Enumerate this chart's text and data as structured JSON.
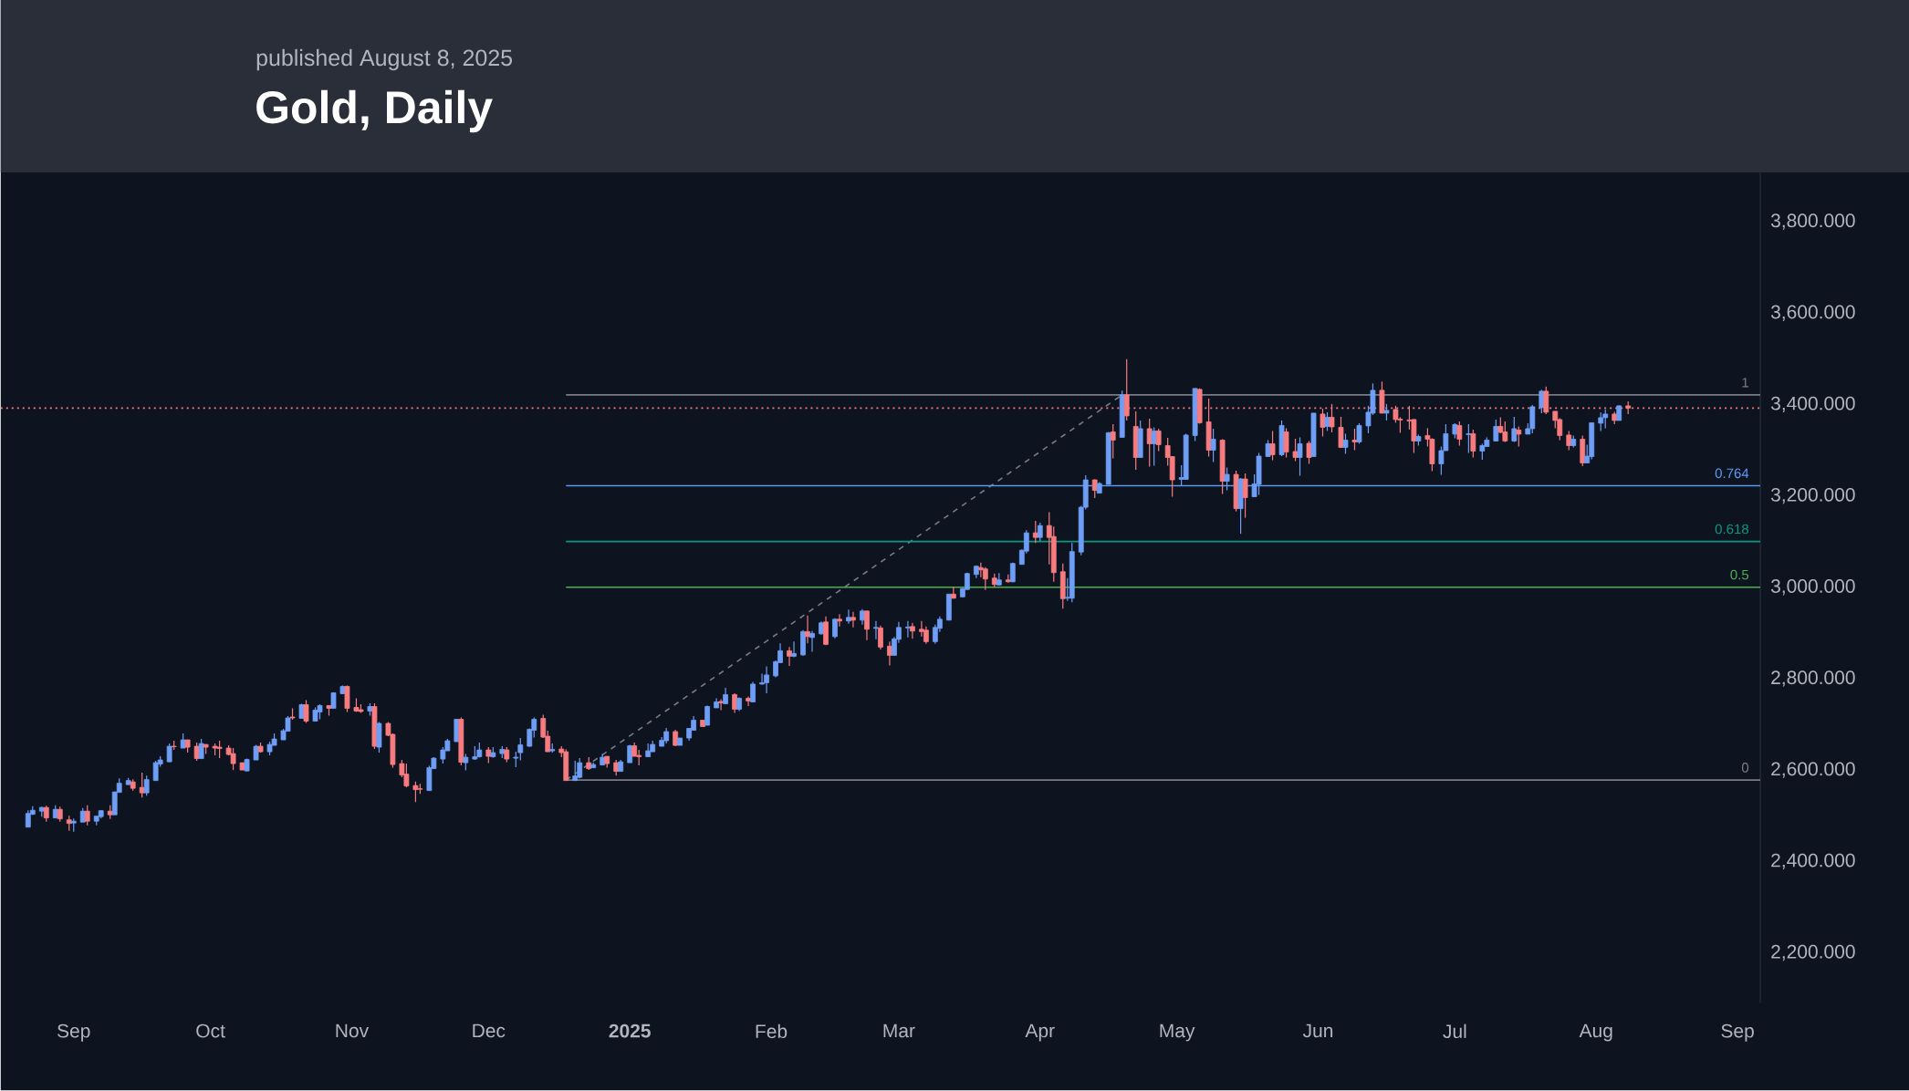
{
  "chart_data": {
    "type": "candlestick",
    "title": "Gold, Daily",
    "subtitle": "published August 8, 2025",
    "x": [
      "2024-08-22",
      "2024-08-23",
      "2024-08-25",
      "2024-08-26",
      "2024-08-28",
      "2024-08-29",
      "2024-08-31",
      "2024-09-01",
      "2024-09-03",
      "2024-09-04",
      "2024-09-06",
      "2024-09-07",
      "2024-09-09",
      "2024-09-10",
      "2024-09-11",
      "2024-09-13",
      "2024-09-14",
      "2024-09-16",
      "2024-09-17",
      "2024-09-19",
      "2024-09-20",
      "2024-09-22",
      "2024-09-23",
      "2024-09-25",
      "2024-09-26",
      "2024-09-28",
      "2024-09-29",
      "2024-09-30",
      "2024-10-02",
      "2024-10-03",
      "2024-10-05",
      "2024-10-06",
      "2024-10-08",
      "2024-10-09",
      "2024-10-11",
      "2024-10-12",
      "2024-10-14",
      "2024-10-15",
      "2024-10-17",
      "2024-10-18",
      "2024-10-19",
      "2024-10-21",
      "2024-10-22",
      "2024-10-24",
      "2024-10-25",
      "2024-10-27",
      "2024-10-28",
      "2024-10-30",
      "2024-10-31",
      "2024-11-02",
      "2024-11-03",
      "2024-11-05",
      "2024-11-06",
      "2024-11-07",
      "2024-11-09",
      "2024-11-10",
      "2024-11-12",
      "2024-11-13",
      "2024-11-15",
      "2024-11-16",
      "2024-11-18",
      "2024-11-19",
      "2024-11-21",
      "2024-11-22",
      "2024-11-24",
      "2024-11-25",
      "2024-11-26",
      "2024-11-28",
      "2024-11-29",
      "2024-12-01",
      "2024-12-02",
      "2024-12-04",
      "2024-12-05",
      "2024-12-07",
      "2024-12-08",
      "2024-12-10",
      "2024-12-11",
      "2024-12-13",
      "2024-12-14",
      "2024-12-15",
      "2024-12-17",
      "2024-12-18",
      "2024-12-20",
      "2024-12-21",
      "2024-12-23",
      "2024-12-24",
      "2024-12-26",
      "2024-12-27",
      "2024-12-29",
      "2024-12-30",
      "2025-01-01",
      "2025-01-02",
      "2025-01-03",
      "2025-01-05",
      "2025-01-06",
      "2025-01-08",
      "2025-01-09",
      "2025-01-11",
      "2025-01-12",
      "2025-01-14",
      "2025-01-15",
      "2025-01-17",
      "2025-01-18",
      "2025-01-20",
      "2025-01-21",
      "2025-01-22",
      "2025-01-24",
      "2025-01-25",
      "2025-01-27",
      "2025-01-28",
      "2025-01-30",
      "2025-01-31",
      "2025-02-02",
      "2025-02-03",
      "2025-02-05",
      "2025-02-06",
      "2025-02-08",
      "2025-02-09",
      "2025-02-10",
      "2025-02-12",
      "2025-02-13",
      "2025-02-15",
      "2025-02-16",
      "2025-02-18",
      "2025-02-19",
      "2025-02-21",
      "2025-02-22",
      "2025-02-24",
      "2025-02-25",
      "2025-02-27",
      "2025-02-28",
      "2025-03-01",
      "2025-03-03",
      "2025-03-04",
      "2025-03-06",
      "2025-03-07",
      "2025-03-09",
      "2025-03-10",
      "2025-03-12",
      "2025-03-13",
      "2025-03-15",
      "2025-03-16",
      "2025-03-18",
      "2025-03-19",
      "2025-03-20",
      "2025-03-22",
      "2025-03-23",
      "2025-03-25",
      "2025-03-26",
      "2025-03-28",
      "2025-03-29",
      "2025-03-31",
      "2025-04-01",
      "2025-04-03",
      "2025-04-04",
      "2025-04-06",
      "2025-04-07",
      "2025-04-08",
      "2025-04-10",
      "2025-04-11",
      "2025-04-13",
      "2025-04-14",
      "2025-04-16",
      "2025-04-17",
      "2025-04-19",
      "2025-04-20",
      "2025-04-22",
      "2025-04-23",
      "2025-04-25",
      "2025-04-26",
      "2025-04-27",
      "2025-04-29",
      "2025-04-30",
      "2025-05-02",
      "2025-05-03",
      "2025-05-05",
      "2025-05-06",
      "2025-05-08",
      "2025-05-09",
      "2025-05-11",
      "2025-05-12",
      "2025-05-14",
      "2025-05-15",
      "2025-05-16",
      "2025-05-18",
      "2025-05-19",
      "2025-05-21",
      "2025-05-22",
      "2025-05-24",
      "2025-05-25",
      "2025-05-27",
      "2025-05-28",
      "2025-05-30",
      "2025-05-31",
      "2025-06-02",
      "2025-06-03",
      "2025-06-04",
      "2025-06-06",
      "2025-06-07",
      "2025-06-09",
      "2025-06-10",
      "2025-06-12",
      "2025-06-13",
      "2025-06-15",
      "2025-06-16",
      "2025-06-18",
      "2025-06-19",
      "2025-06-21",
      "2025-06-22",
      "2025-06-23",
      "2025-06-25",
      "2025-06-26",
      "2025-06-28",
      "2025-06-29",
      "2025-07-01",
      "2025-07-02",
      "2025-07-04",
      "2025-07-05",
      "2025-07-07",
      "2025-07-08",
      "2025-07-10",
      "2025-07-11",
      "2025-07-12",
      "2025-07-14",
      "2025-07-15",
      "2025-07-17",
      "2025-07-18",
      "2025-07-20",
      "2025-07-21",
      "2025-07-23",
      "2025-07-24",
      "2025-07-26",
      "2025-07-27",
      "2025-07-29",
      "2025-07-30",
      "2025-07-31",
      "2025-08-02",
      "2025-08-03",
      "2025-08-05",
      "2025-08-06",
      "2025-08-08"
    ],
    "ohlc": [
      [
        2475,
        2512,
        2475,
        2505
      ],
      [
        2503,
        2521,
        2502,
        2512
      ],
      [
        2510,
        2520,
        2498,
        2518
      ],
      [
        2518,
        2522,
        2487,
        2495
      ],
      [
        2495,
        2523,
        2495,
        2514
      ],
      [
        2514,
        2520,
        2487,
        2493
      ],
      [
        2491,
        2500,
        2467,
        2483
      ],
      [
        2484,
        2494,
        2465,
        2488
      ],
      [
        2486,
        2517,
        2486,
        2510
      ],
      [
        2510,
        2523,
        2479,
        2488
      ],
      [
        2488,
        2499,
        2479,
        2499
      ],
      [
        2498,
        2512,
        2494,
        2511
      ],
      [
        2510,
        2523,
        2493,
        2502
      ],
      [
        2502,
        2553,
        2502,
        2552
      ],
      [
        2551,
        2582,
        2551,
        2571
      ],
      [
        2568,
        2583,
        2568,
        2577
      ],
      [
        2574,
        2580,
        2555,
        2560
      ],
      [
        2562,
        2594,
        2540,
        2550
      ],
      [
        2550,
        2588,
        2544,
        2579
      ],
      [
        2577,
        2620,
        2577,
        2616
      ],
      [
        2613,
        2630,
        2607,
        2622
      ],
      [
        2618,
        2658,
        2617,
        2652
      ],
      [
        2652,
        2664,
        2644,
        2651
      ],
      [
        2648,
        2680,
        2648,
        2666
      ],
      [
        2666,
        2666,
        2638,
        2650
      ],
      [
        2652,
        2660,
        2620,
        2625
      ],
      [
        2625,
        2668,
        2625,
        2658
      ],
      [
        2656,
        2656,
        2635,
        2650
      ],
      [
        2652,
        2658,
        2632,
        2648
      ],
      [
        2650,
        2664,
        2626,
        2647
      ],
      [
        2648,
        2654,
        2632,
        2634
      ],
      [
        2636,
        2648,
        2600,
        2614
      ],
      [
        2616,
        2616,
        2600,
        2600
      ],
      [
        2598,
        2625,
        2597,
        2623
      ],
      [
        2622,
        2655,
        2622,
        2652
      ],
      [
        2652,
        2660,
        2638,
        2640
      ],
      [
        2640,
        2662,
        2632,
        2656
      ],
      [
        2654,
        2680,
        2654,
        2668
      ],
      [
        2666,
        2690,
        2666,
        2686
      ],
      [
        2685,
        2718,
        2685,
        2714
      ],
      [
        2716,
        2735,
        2710,
        2714
      ],
      [
        2713,
        2745,
        2713,
        2743
      ],
      [
        2743,
        2753,
        2703,
        2707
      ],
      [
        2707,
        2737,
        2707,
        2731
      ],
      [
        2727,
        2744,
        2711,
        2741
      ],
      [
        2741,
        2741,
        2719,
        2735
      ],
      [
        2735,
        2770,
        2735,
        2769
      ],
      [
        2767,
        2785,
        2766,
        2783
      ],
      [
        2783,
        2785,
        2727,
        2735
      ],
      [
        2737,
        2757,
        2727,
        2729
      ],
      [
        2732,
        2744,
        2725,
        2728
      ],
      [
        2729,
        2746,
        2719,
        2739
      ],
      [
        2739,
        2746,
        2646,
        2652
      ],
      [
        2650,
        2705,
        2638,
        2702
      ],
      [
        2702,
        2705,
        2674,
        2676
      ],
      [
        2678,
        2680,
        2605,
        2612
      ],
      [
        2614,
        2622,
        2584,
        2589
      ],
      [
        2591,
        2614,
        2562,
        2565
      ],
      [
        2566,
        2575,
        2530,
        2557
      ],
      [
        2559,
        2570,
        2548,
        2558
      ],
      [
        2555,
        2609,
        2555,
        2605
      ],
      [
        2603,
        2628,
        2603,
        2626
      ],
      [
        2624,
        2650,
        2614,
        2644
      ],
      [
        2642,
        2668,
        2642,
        2664
      ],
      [
        2662,
        2712,
        2662,
        2711
      ],
      [
        2711,
        2715,
        2610,
        2617
      ],
      [
        2616,
        2635,
        2599,
        2628
      ],
      [
        2624,
        2652,
        2622,
        2629
      ],
      [
        2629,
        2660,
        2627,
        2644
      ],
      [
        2644,
        2650,
        2615,
        2630
      ],
      [
        2629,
        2650,
        2627,
        2638
      ],
      [
        2636,
        2652,
        2626,
        2645
      ],
      [
        2644,
        2650,
        2617,
        2624
      ],
      [
        2626,
        2640,
        2606,
        2628
      ],
      [
        2638,
        2670,
        2621,
        2655
      ],
      [
        2652,
        2691,
        2651,
        2689
      ],
      [
        2687,
        2715,
        2671,
        2711
      ],
      [
        2713,
        2721,
        2670,
        2672
      ],
      [
        2674,
        2686,
        2640,
        2640
      ],
      [
        2642,
        2658,
        2638,
        2645
      ],
      [
        2646,
        2652,
        2628,
        2638
      ],
      [
        2640,
        2645,
        2577,
        2577
      ],
      [
        2577,
        2620,
        2577,
        2587
      ],
      [
        2584,
        2626,
        2582,
        2616
      ],
      [
        2616,
        2628,
        2600,
        2603
      ],
      [
        2605,
        2616,
        2604,
        2612
      ],
      [
        2611,
        2635,
        2610,
        2628
      ],
      [
        2630,
        2630,
        2605,
        2614
      ],
      [
        2616,
        2622,
        2588,
        2597
      ],
      [
        2597,
        2622,
        2597,
        2618
      ],
      [
        2616,
        2655,
        2616,
        2653
      ],
      [
        2653,
        2660,
        2630,
        2630
      ],
      [
        2632,
        2644,
        2610,
        2629
      ],
      [
        2629,
        2658,
        2629,
        2642
      ],
      [
        2640,
        2664,
        2640,
        2656
      ],
      [
        2652,
        2672,
        2652,
        2665
      ],
      [
        2664,
        2692,
        2658,
        2684
      ],
      [
        2684,
        2688,
        2652,
        2654
      ],
      [
        2654,
        2670,
        2654,
        2670
      ],
      [
        2670,
        2691,
        2664,
        2691
      ],
      [
        2687,
        2718,
        2687,
        2709
      ],
      [
        2709,
        2709,
        2695,
        2695
      ],
      [
        2698,
        2741,
        2698,
        2739
      ],
      [
        2736,
        2757,
        2736,
        2749
      ],
      [
        2750,
        2755,
        2731,
        2747
      ],
      [
        2745,
        2780,
        2745,
        2765
      ],
      [
        2765,
        2768,
        2725,
        2733
      ],
      [
        2733,
        2759,
        2729,
        2757
      ],
      [
        2757,
        2761,
        2740,
        2751
      ],
      [
        2749,
        2793,
        2749,
        2788
      ],
      [
        2788,
        2811,
        2787,
        2791
      ],
      [
        2791,
        2827,
        2768,
        2808
      ],
      [
        2806,
        2840,
        2803,
        2837
      ],
      [
        2835,
        2877,
        2835,
        2861
      ],
      [
        2861,
        2869,
        2828,
        2849
      ],
      [
        2849,
        2881,
        2847,
        2855
      ],
      [
        2852,
        2906,
        2850,
        2903
      ],
      [
        2903,
        2938,
        2877,
        2892
      ],
      [
        2890,
        2904,
        2859,
        2899
      ],
      [
        2898,
        2925,
        2896,
        2922
      ],
      [
        2924,
        2936,
        2873,
        2875
      ],
      [
        2892,
        2932,
        2888,
        2930
      ],
      [
        2930,
        2941,
        2914,
        2926
      ],
      [
        2926,
        2951,
        2920,
        2934
      ],
      [
        2934,
        2946,
        2912,
        2928
      ],
      [
        2928,
        2952,
        2918,
        2948
      ],
      [
        2948,
        2948,
        2884,
        2908
      ],
      [
        2910,
        2926,
        2886,
        2912
      ],
      [
        2911,
        2916,
        2864,
        2869
      ],
      [
        2871,
        2881,
        2829,
        2851
      ],
      [
        2851,
        2891,
        2851,
        2887
      ],
      [
        2886,
        2924,
        2878,
        2912
      ],
      [
        2911,
        2926,
        2890,
        2913
      ],
      [
        2914,
        2922,
        2887,
        2904
      ],
      [
        2908,
        2926,
        2892,
        2903
      ],
      [
        2906,
        2914,
        2876,
        2881
      ],
      [
        2881,
        2918,
        2876,
        2912
      ],
      [
        2910,
        2936,
        2902,
        2930
      ],
      [
        2928,
        2985,
        2928,
        2985
      ],
      [
        2985,
        3001,
        2975,
        2976
      ],
      [
        2979,
        2999,
        2978,
        2997
      ],
      [
        2995,
        3032,
        2995,
        3030
      ],
      [
        3028,
        3048,
        3020,
        3046
      ],
      [
        3043,
        3054,
        3022,
        3038
      ],
      [
        3040,
        3044,
        2994,
        3018
      ],
      [
        3020,
        3030,
        3000,
        3006
      ],
      [
        3005,
        3031,
        3004,
        3016
      ],
      [
        3016,
        3028,
        3010,
        3012
      ],
      [
        3012,
        3054,
        3011,
        3052
      ],
      [
        3050,
        3083,
        3050,
        3081
      ],
      [
        3079,
        3125,
        3074,
        3119
      ],
      [
        3119,
        3145,
        3097,
        3109
      ],
      [
        3109,
        3141,
        3101,
        3135
      ],
      [
        3135,
        3164,
        3050,
        3109
      ],
      [
        3111,
        3133,
        3012,
        3032
      ],
      [
        3034,
        3052,
        2953,
        2975
      ],
      [
        2976,
        3020,
        2970,
        2978
      ],
      [
        2976,
        3097,
        2967,
        3078
      ],
      [
        3077,
        3178,
        3070,
        3175
      ],
      [
        3175,
        3245,
        3170,
        3235
      ],
      [
        3235,
        3236,
        3195,
        3212
      ],
      [
        3206,
        3230,
        3205,
        3227
      ],
      [
        3225,
        3340,
        3225,
        3338
      ],
      [
        3340,
        3357,
        3282,
        3322
      ],
      [
        3328,
        3430,
        3328,
        3421
      ],
      [
        3421,
        3499,
        3365,
        3375
      ],
      [
        3352,
        3385,
        3257,
        3284
      ],
      [
        3284,
        3365,
        3284,
        3347
      ],
      [
        3347,
        3369,
        3264,
        3314
      ],
      [
        3314,
        3350,
        3266,
        3342
      ],
      [
        3342,
        3347,
        3298,
        3312
      ],
      [
        3310,
        3327,
        3266,
        3284
      ],
      [
        3286,
        3287,
        3198,
        3235
      ],
      [
        3236,
        3267,
        3222,
        3240
      ],
      [
        3236,
        3336,
        3236,
        3333
      ],
      [
        3332,
        3435,
        3320,
        3435
      ],
      [
        3433,
        3435,
        3358,
        3360
      ],
      [
        3362,
        3413,
        3286,
        3300
      ],
      [
        3300,
        3347,
        3274,
        3324
      ],
      [
        3322,
        3324,
        3204,
        3232
      ],
      [
        3232,
        3262,
        3212,
        3247
      ],
      [
        3247,
        3255,
        3166,
        3172
      ],
      [
        3172,
        3239,
        3117,
        3237
      ],
      [
        3237,
        3249,
        3152,
        3196
      ],
      [
        3198,
        3247,
        3198,
        3226
      ],
      [
        3225,
        3294,
        3202,
        3287
      ],
      [
        3286,
        3322,
        3286,
        3314
      ],
      [
        3314,
        3342,
        3278,
        3290
      ],
      [
        3290,
        3365,
        3287,
        3354
      ],
      [
        3340,
        3348,
        3284,
        3296
      ],
      [
        3297,
        3325,
        3276,
        3284
      ],
      [
        3284,
        3328,
        3244,
        3314
      ],
      [
        3315,
        3320,
        3270,
        3284
      ],
      [
        3286,
        3381,
        3286,
        3381
      ],
      [
        3379,
        3391,
        3330,
        3350
      ],
      [
        3352,
        3383,
        3342,
        3372
      ],
      [
        3372,
        3401,
        3339,
        3351
      ],
      [
        3350,
        3373,
        3305,
        3306
      ],
      [
        3306,
        3336,
        3292,
        3322
      ],
      [
        3322,
        3347,
        3300,
        3318
      ],
      [
        3318,
        3359,
        3314,
        3354
      ],
      [
        3353,
        3397,
        3337,
        3383
      ],
      [
        3381,
        3446,
        3377,
        3431
      ],
      [
        3431,
        3450,
        3381,
        3381
      ],
      [
        3381,
        3401,
        3365,
        3387
      ],
      [
        3389,
        3397,
        3360,
        3367
      ],
      [
        3368,
        3372,
        3338,
        3366
      ],
      [
        3366,
        3397,
        3345,
        3364
      ],
      [
        3367,
        3368,
        3294,
        3320
      ],
      [
        3320,
        3334,
        3310,
        3330
      ],
      [
        3332,
        3348,
        3308,
        3324
      ],
      [
        3324,
        3326,
        3254,
        3270
      ],
      [
        3270,
        3308,
        3246,
        3299
      ],
      [
        3299,
        3357,
        3299,
        3336
      ],
      [
        3335,
        3359,
        3326,
        3356
      ],
      [
        3354,
        3363,
        3310,
        3324
      ],
      [
        3334,
        3357,
        3294,
        3336
      ],
      [
        3336,
        3345,
        3284,
        3298
      ],
      [
        3298,
        3314,
        3279,
        3310
      ],
      [
        3308,
        3328,
        3308,
        3322
      ],
      [
        3320,
        3367,
        3320,
        3352
      ],
      [
        3352,
        3372,
        3337,
        3339
      ],
      [
        3340,
        3363,
        3318,
        3320
      ],
      [
        3320,
        3373,
        3318,
        3347
      ],
      [
        3344,
        3352,
        3308,
        3335
      ],
      [
        3335,
        3359,
        3335,
        3347
      ],
      [
        3347,
        3399,
        3337,
        3395
      ],
      [
        3393,
        3432,
        3381,
        3429
      ],
      [
        3429,
        3439,
        3379,
        3383
      ],
      [
        3385,
        3385,
        3348,
        3365
      ],
      [
        3367,
        3370,
        3322,
        3332
      ],
      [
        3333,
        3342,
        3300,
        3310
      ],
      [
        3310,
        3332,
        3306,
        3324
      ],
      [
        3324,
        3332,
        3265,
        3272
      ],
      [
        3272,
        3312,
        3272,
        3287
      ],
      [
        3286,
        3360,
        3280,
        3360
      ],
      [
        3359,
        3383,
        3342,
        3371
      ],
      [
        3371,
        3389,
        3348,
        3379
      ],
      [
        3379,
        3384,
        3357,
        3365
      ],
      [
        3365,
        3398,
        3365,
        3397
      ],
      [
        3397,
        3407,
        3379,
        3392
      ]
    ],
    "series": [
      {
        "type": "line",
        "x": [
          "2024-12-18",
          "2025-04-19"
        ],
        "values": [
          2578,
          3421
        ],
        "color": "#787b86",
        "line_style": "dashed"
      },
      {
        "type": "line",
        "name": "1",
        "x": [
          "2024-12-18",
          "2025-09-06"
        ],
        "values": [
          3421,
          3421
        ],
        "color": "#787b86"
      },
      {
        "type": "line",
        "name": "0.764",
        "x": [
          "2024-12-18",
          "2025-09-06"
        ],
        "values": [
          3222,
          3222
        ],
        "color": "#5b9cf6"
      },
      {
        "type": "line",
        "name": "0.618",
        "x": [
          "2024-12-18",
          "2025-09-06"
        ],
        "values": [
          3100,
          3100
        ],
        "color": "#089981"
      },
      {
        "type": "line",
        "name": "0.5",
        "x": [
          "2024-12-18",
          "2025-09-06"
        ],
        "values": [
          3000,
          3000
        ],
        "color": "#4caf50"
      },
      {
        "type": "line",
        "name": "0",
        "x": [
          "2024-12-18",
          "2025-09-06"
        ],
        "values": [
          2578,
          2578
        ],
        "color": "#787b86"
      }
    ],
    "ref_lines": [
      {
        "axis": "y",
        "value": 3392,
        "color": "#f77c80",
        "line_style": "dotted"
      }
    ],
    "xlim": [
      "2024-08-16",
      "2025-09-06"
    ],
    "ylim": [
      2090,
      3908
    ],
    "xticks": [
      {
        "value": "2024-09-01",
        "label": "Sep"
      },
      {
        "value": "2024-10-01",
        "label": "Oct"
      },
      {
        "value": "2024-11-01",
        "label": "Nov"
      },
      {
        "value": "2024-12-01",
        "label": "Dec"
      },
      {
        "value": "2025-01-01",
        "label": "**2025**"
      },
      {
        "value": "2025-02-01",
        "label": "Feb"
      },
      {
        "value": "2025-03-01",
        "label": "Mar"
      },
      {
        "value": "2025-04-01",
        "label": "Apr"
      },
      {
        "value": "2025-05-01",
        "label": "May"
      },
      {
        "value": "2025-06-01",
        "label": "Jun"
      },
      {
        "value": "2025-07-01",
        "label": "Jul"
      },
      {
        "value": "2025-08-01",
        "label": "Aug"
      },
      {
        "value": "2025-09-01",
        "label": "Sep"
      }
    ],
    "yticks": [
      {
        "value": 2200,
        "label": "2,200.000"
      },
      {
        "value": 2400,
        "label": "2,400.000"
      },
      {
        "value": 2600,
        "label": "2,600.000"
      },
      {
        "value": 2800,
        "label": "2,800.000"
      },
      {
        "value": 3000,
        "label": "3,000.000"
      },
      {
        "value": 3200,
        "label": "3,200.000"
      },
      {
        "value": 3400,
        "label": "3,400.000"
      },
      {
        "value": 3600,
        "label": "3,600.000"
      },
      {
        "value": 3800,
        "label": "3,800.000"
      }
    ]
  }
}
